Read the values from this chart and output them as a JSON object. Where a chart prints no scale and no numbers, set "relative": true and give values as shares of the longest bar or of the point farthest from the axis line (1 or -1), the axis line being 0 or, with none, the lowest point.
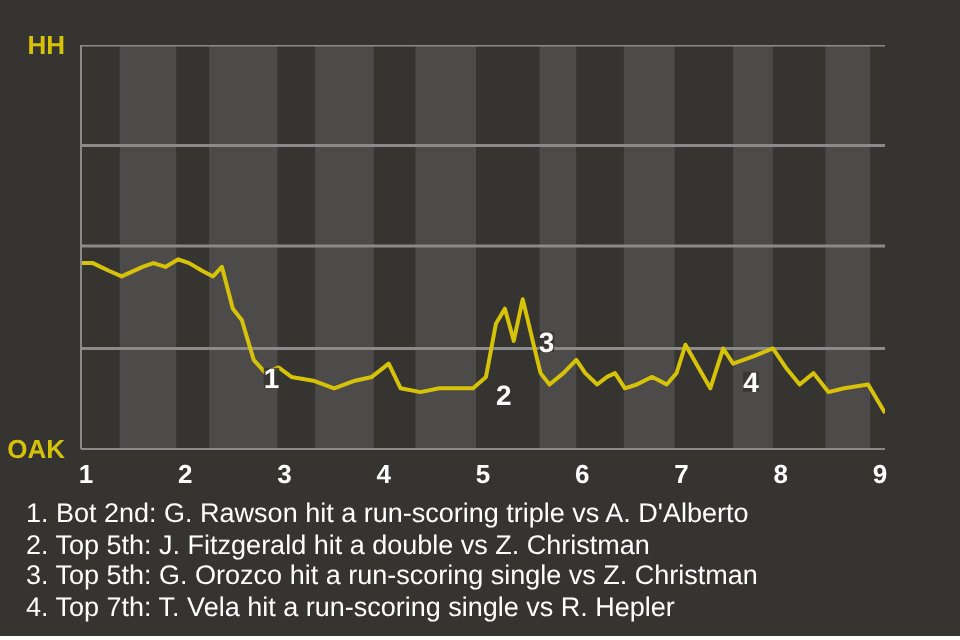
{
  "chart_data": {
    "type": "line",
    "relative": true,
    "x": [
      0.95,
      1.07,
      1.23,
      1.36,
      1.57,
      1.68,
      1.8,
      1.93,
      2.04,
      2.17,
      2.28,
      2.37,
      2.48,
      2.57,
      2.69,
      2.81,
      2.94,
      3.07,
      3.29,
      3.5,
      3.71,
      3.88,
      4.05,
      4.17,
      4.37,
      4.56,
      4.76,
      4.9,
      5.03,
      5.13,
      5.22,
      5.31,
      5.4,
      5.46,
      5.51,
      5.58,
      5.67,
      5.81,
      5.94,
      6.03,
      6.15,
      6.25,
      6.33,
      6.43,
      6.55,
      6.7,
      6.78,
      6.85,
      6.95,
      7.04,
      7.17,
      7.29,
      7.42,
      7.52,
      7.73,
      7.92,
      8.05,
      8.19,
      8.33,
      8.48,
      8.64,
      8.88,
      9.05
    ],
    "series": [
      {
        "color": "#d6c208",
        "values": [
          0.98,
          0.98,
          0.94,
          0.91,
          0.96,
          0.98,
          0.96,
          1,
          0.98,
          0.94,
          0.91,
          0.96,
          0.74,
          0.68,
          0.47,
          0.4,
          0.43,
          0.38,
          0.36,
          0.32,
          0.36,
          0.38,
          0.45,
          0.32,
          0.3,
          0.32,
          0.32,
          0.32,
          0.38,
          0.66,
          0.74,
          0.57,
          0.79,
          0.66,
          0.55,
          0.4,
          0.34,
          0.4,
          0.47,
          0.4,
          0.34,
          0.38,
          0.4,
          0.32,
          0.34,
          0.38,
          0.36,
          0.34,
          0.4,
          0.55,
          0.43,
          0.32,
          0.53,
          0.45,
          0.49,
          0.53,
          0.43,
          0.34,
          0.4,
          0.3,
          0.32,
          0.34,
          0.19
        ]
      }
    ],
    "xlim": [
      0.95,
      9.05
    ],
    "xticks": [
      1,
      2,
      3,
      4,
      5,
      6,
      7,
      8,
      9
    ],
    "ref_lines": [
      {
        "axis": "y",
        "value": 0.53,
        "color": "#8a8a8a"
      },
      {
        "axis": "y",
        "value": 1.07,
        "color": "#8a8a8a"
      },
      {
        "axis": "y",
        "value": 1.6,
        "color": "#8a8a8a"
      },
      {
        "axis": "y",
        "value": 2.13,
        "color": "#8a8a8a"
      }
    ],
    "bands": [
      {
        "axis": "x",
        "from": 1.34,
        "to": 1.91,
        "color": "#4c4b49"
      },
      {
        "axis": "x",
        "from": 2.24,
        "to": 2.93,
        "color": "#4c4b49"
      },
      {
        "axis": "x",
        "from": 3.31,
        "to": 3.9,
        "color": "#4c4b49"
      },
      {
        "axis": "x",
        "from": 4.32,
        "to": 4.93,
        "color": "#4c4b49"
      },
      {
        "axis": "x",
        "from": 5.57,
        "to": 5.94,
        "color": "#4c4b49"
      },
      {
        "axis": "x",
        "from": 6.42,
        "to": 6.93,
        "color": "#4c4b49"
      },
      {
        "axis": "x",
        "from": 7.52,
        "to": 7.92,
        "color": "#4c4b49"
      },
      {
        "axis": "x",
        "from": 8.45,
        "to": 8.9,
        "color": "#4c4b49"
      }
    ],
    "annotations": [
      "HH",
      "OAK",
      {
        "text": "1",
        "x": 2.69,
        "y": 0.47
      },
      {
        "text": "2",
        "x": 5.03,
        "y": 0.38
      },
      {
        "text": "3",
        "x": 5.46,
        "y": 0.66
      },
      {
        "text": "4",
        "x": 7.52,
        "y": 0.45
      },
      "1. Bot 2nd: G. Rawson hit a run-scoring triple vs A. D'Alberto",
      "2. Top 5th: J. Fitzgerald hit a double vs Z. Christman",
      "3. Top 5th: G. Orozco hit a run-scoring single vs Z. Christman",
      "4. Top 7th: T. Vela hit a run-scoring single vs R. Hepler"
    ]
  }
}
